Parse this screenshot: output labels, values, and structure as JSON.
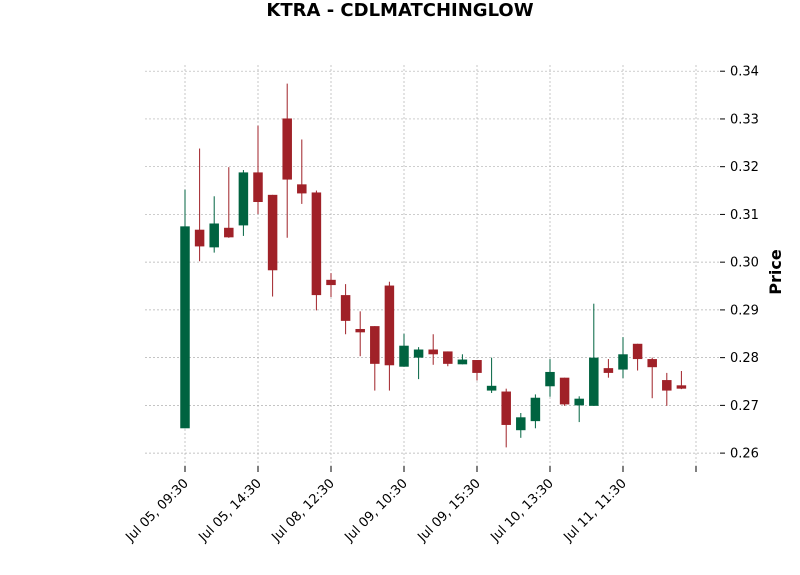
{
  "chart_data": {
    "type": "candlestick",
    "title": "KTRA - CDLMATCHINGLOW",
    "xlabel": "",
    "ylabel": "Price",
    "ylim": [
      0.2573,
      0.3413
    ],
    "yticks": [
      0.26,
      0.27,
      0.28,
      0.29,
      0.3,
      0.31,
      0.32,
      0.33,
      0.34
    ],
    "ytick_labels": [
      "0.26",
      "0.27",
      "0.28",
      "0.29",
      "0.30",
      "0.31",
      "0.32",
      "0.33",
      "0.34"
    ],
    "xticks": [
      {
        "index": 0,
        "label": "Jul 05, 09:30"
      },
      {
        "index": 5,
        "label": "Jul 05, 14:30"
      },
      {
        "index": 10,
        "label": "Jul 08, 12:30"
      },
      {
        "index": 15,
        "label": "Jul 09, 10:30"
      },
      {
        "index": 20,
        "label": "Jul 09, 15:30"
      },
      {
        "index": 25,
        "label": "Jul 10, 13:30"
      },
      {
        "index": 30,
        "label": "Jul 11, 11:30"
      },
      {
        "index": 35,
        "label": ""
      }
    ],
    "grid": true,
    "y_axis_side": "right",
    "up_color": "#006340",
    "down_color": "#a02128",
    "candles": [
      {
        "o": 0.2652,
        "h": 0.3152,
        "l": 0.2652,
        "c": 0.3075
      },
      {
        "o": 0.3068,
        "h": 0.3238,
        "l": 0.3002,
        "c": 0.3033
      },
      {
        "o": 0.3031,
        "h": 0.3138,
        "l": 0.302,
        "c": 0.3081
      },
      {
        "o": 0.3072,
        "h": 0.3199,
        "l": 0.3051,
        "c": 0.3052
      },
      {
        "o": 0.3077,
        "h": 0.3193,
        "l": 0.3055,
        "c": 0.3188
      },
      {
        "o": 0.3188,
        "h": 0.3286,
        "l": 0.3101,
        "c": 0.3126
      },
      {
        "o": 0.3141,
        "h": 0.3141,
        "l": 0.2928,
        "c": 0.2983
      },
      {
        "o": 0.3301,
        "h": 0.3374,
        "l": 0.3051,
        "c": 0.3173
      },
      {
        "o": 0.3163,
        "h": 0.3257,
        "l": 0.3122,
        "c": 0.3144
      },
      {
        "o": 0.3146,
        "h": 0.315,
        "l": 0.2899,
        "c": 0.2931
      },
      {
        "o": 0.2963,
        "h": 0.2977,
        "l": 0.2927,
        "c": 0.2952
      },
      {
        "o": 0.2931,
        "h": 0.2954,
        "l": 0.2849,
        "c": 0.2877
      },
      {
        "o": 0.286,
        "h": 0.2897,
        "l": 0.2803,
        "c": 0.2853
      },
      {
        "o": 0.2866,
        "h": 0.2866,
        "l": 0.2731,
        "c": 0.2787
      },
      {
        "o": 0.2951,
        "h": 0.2959,
        "l": 0.2731,
        "c": 0.2784
      },
      {
        "o": 0.2781,
        "h": 0.285,
        "l": 0.2781,
        "c": 0.2825
      },
      {
        "o": 0.28,
        "h": 0.2822,
        "l": 0.2755,
        "c": 0.2817
      },
      {
        "o": 0.2817,
        "h": 0.2849,
        "l": 0.2785,
        "c": 0.2807
      },
      {
        "o": 0.2813,
        "h": 0.2813,
        "l": 0.2782,
        "c": 0.2787
      },
      {
        "o": 0.2786,
        "h": 0.2807,
        "l": 0.2786,
        "c": 0.2796
      },
      {
        "o": 0.2795,
        "h": 0.2795,
        "l": 0.2752,
        "c": 0.2768
      },
      {
        "o": 0.2731,
        "h": 0.28,
        "l": 0.2726,
        "c": 0.2741
      },
      {
        "o": 0.2729,
        "h": 0.2735,
        "l": 0.2612,
        "c": 0.2659
      },
      {
        "o": 0.2648,
        "h": 0.2684,
        "l": 0.2632,
        "c": 0.2675
      },
      {
        "o": 0.2667,
        "h": 0.2723,
        "l": 0.2652,
        "c": 0.2716
      },
      {
        "o": 0.274,
        "h": 0.2797,
        "l": 0.2718,
        "c": 0.277
      },
      {
        "o": 0.2758,
        "h": 0.2758,
        "l": 0.2699,
        "c": 0.2702
      },
      {
        "o": 0.27,
        "h": 0.2719,
        "l": 0.2665,
        "c": 0.2714
      },
      {
        "o": 0.2699,
        "h": 0.2913,
        "l": 0.2699,
        "c": 0.28
      },
      {
        "o": 0.2778,
        "h": 0.2797,
        "l": 0.2758,
        "c": 0.2768
      },
      {
        "o": 0.2775,
        "h": 0.2843,
        "l": 0.2757,
        "c": 0.2807
      },
      {
        "o": 0.2829,
        "h": 0.2829,
        "l": 0.2773,
        "c": 0.2797
      },
      {
        "o": 0.2797,
        "h": 0.28,
        "l": 0.2715,
        "c": 0.278
      },
      {
        "o": 0.2753,
        "h": 0.2768,
        "l": 0.2699,
        "c": 0.2731
      },
      {
        "o": 0.2742,
        "h": 0.2772,
        "l": 0.2734,
        "c": 0.2735
      }
    ]
  }
}
